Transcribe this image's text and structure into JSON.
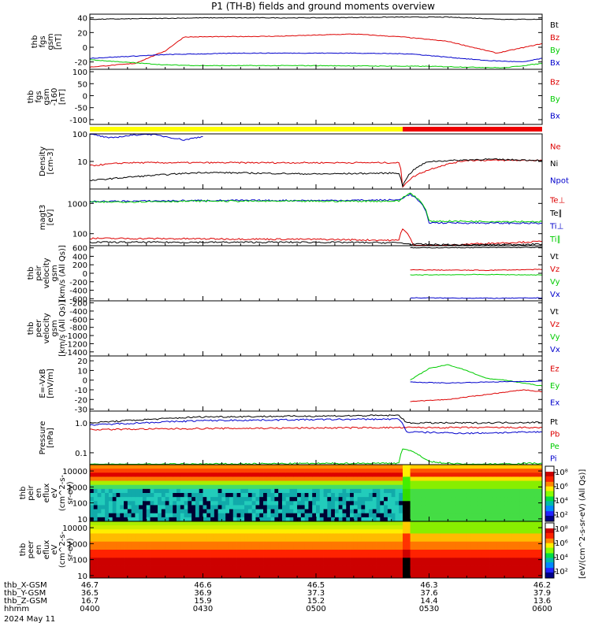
{
  "title": "P1 (TH-B) fields and ground moments overview",
  "colors": {
    "black": "#000000",
    "red": "#dd0000",
    "green": "#00cc00",
    "blue": "#0000cc",
    "bar_yellow": "#ffff00",
    "bar_red": "#ee0000"
  },
  "panels": [
    {
      "id": "fgs1",
      "ylabel": [
        "thb",
        "fgs",
        "gsm",
        "[nT]"
      ],
      "yticks": [
        "40",
        "20",
        "0",
        "-20"
      ],
      "legend": [
        {
          "text": "Bt",
          "color": "black"
        },
        {
          "text": "Bz",
          "color": "red"
        },
        {
          "text": "By",
          "color": "green"
        },
        {
          "text": "Bx",
          "color": "blue"
        }
      ]
    },
    {
      "id": "fgs2",
      "ylabel": [
        "thb",
        "fgs",
        "gsm",
        "-160",
        "[nT]"
      ],
      "yticks": [
        "100",
        "50",
        "0",
        "-50",
        "-100"
      ],
      "legend": [
        {
          "text": "Bz",
          "color": "red"
        },
        {
          "text": "By",
          "color": "green"
        },
        {
          "text": "Bx",
          "color": "blue"
        }
      ]
    },
    {
      "id": "density",
      "ylabel": [
        "Density",
        "[cm-3]"
      ],
      "yticks": [
        "100",
        "10"
      ],
      "legend": [
        {
          "text": "Ne",
          "color": "red"
        },
        {
          "text": "Ni",
          "color": "black"
        },
        {
          "text": "Npot",
          "color": "blue"
        }
      ]
    },
    {
      "id": "temp",
      "ylabel": [
        "magt3",
        "[eV]"
      ],
      "yticks": [
        "1000",
        "100"
      ],
      "legend": [
        {
          "text": "Te⊥",
          "color": "red"
        },
        {
          "text": "Te∥",
          "color": "black"
        },
        {
          "text": "Ti⊥",
          "color": "blue"
        },
        {
          "text": "Ti∥",
          "color": "green"
        }
      ]
    },
    {
      "id": "peir_vel",
      "ylabel": [
        "thb",
        "peir",
        "velocity",
        "gsm",
        "[km/s (All Qs)]"
      ],
      "yticks": [
        "600",
        "400",
        "200",
        "0",
        "-200",
        "-400",
        "-600"
      ],
      "legend": [
        {
          "text": "Vt",
          "color": "black"
        },
        {
          "text": "Vz",
          "color": "red"
        },
        {
          "text": "Vy",
          "color": "green"
        },
        {
          "text": "Vx",
          "color": "blue"
        }
      ]
    },
    {
      "id": "peer_vel",
      "ylabel": [
        "thb",
        "peer",
        "velocity",
        "gsm",
        "[km/s (All Qs)]"
      ],
      "yticks": [
        "-200",
        "-400",
        "-600",
        "-800",
        "-1000",
        "-1200",
        "-1400"
      ],
      "legend": [
        {
          "text": "Vt",
          "color": "black"
        },
        {
          "text": "Vz",
          "color": "red"
        },
        {
          "text": "Vy",
          "color": "green"
        },
        {
          "text": "Vx",
          "color": "blue"
        }
      ]
    },
    {
      "id": "efield",
      "ylabel": [
        "E=-VxB",
        "[mV/m]"
      ],
      "yticks": [
        "20",
        "10",
        "0",
        "-10",
        "-20",
        "-30"
      ],
      "legend": [
        {
          "text": "Ez",
          "color": "red"
        },
        {
          "text": "Ey",
          "color": "green"
        },
        {
          "text": "Ex",
          "color": "blue"
        }
      ]
    },
    {
      "id": "pressure",
      "ylabel": [
        "Pressure",
        "[nPa]"
      ],
      "yticks": [
        "1.0",
        "0.1"
      ],
      "legend": [
        {
          "text": "Pt",
          "color": "black"
        },
        {
          "text": "Pb",
          "color": "red"
        },
        {
          "text": "Pe",
          "color": "green"
        },
        {
          "text": "Pi",
          "color": "blue"
        }
      ]
    },
    {
      "id": "peir_spec",
      "ylabel": [
        "thb",
        "peir",
        "en",
        "eflux",
        "eV",
        "(cm^2-s-",
        "sr-eV)"
      ],
      "yticks": [
        "10000",
        "1000",
        "100",
        "10"
      ],
      "legend": []
    },
    {
      "id": "peer_spec",
      "ylabel": [
        "thb",
        "peer",
        "en",
        "eflux",
        "eV",
        "(cm^2-s-",
        "sr-eV)"
      ],
      "yticks": [
        "10000",
        "1000",
        "100",
        "10"
      ],
      "legend": []
    }
  ],
  "colorbar": {
    "label": "[eV/(cm^2-s-sr-eV) (All Qs)]",
    "top_ticks": [
      "10⁸",
      "10⁶",
      "10⁴",
      "10²"
    ],
    "bottom_ticks": [
      "10⁸",
      "10⁶",
      "10⁴",
      "10²"
    ]
  },
  "xaxis": {
    "rows": [
      {
        "label": "thb_X-GSM",
        "values": [
          "46.7",
          "46.6",
          "46.5",
          "46.3",
          "46.2"
        ]
      },
      {
        "label": "thb_Y-GSM",
        "values": [
          "36.5",
          "36.9",
          "37.3",
          "37.6",
          "37.9"
        ]
      },
      {
        "label": "thb_Z-GSM",
        "values": [
          "16.7",
          "15.9",
          "15.2",
          "14.4",
          "13.6"
        ]
      },
      {
        "label": "hhmm",
        "values": [
          "0400",
          "0430",
          "0500",
          "0530",
          "0600"
        ]
      }
    ],
    "date": "2024 May 11"
  },
  "chart_data": {
    "type": "line",
    "title": "P1 (TH-B) fields and ground moments overview",
    "x_range": [
      "04:00",
      "06:00"
    ],
    "x_ticks": [
      "0400",
      "0430",
      "0500",
      "0530",
      "0600"
    ],
    "transition_time": "05:23",
    "panels": [
      {
        "id": "fgs1",
        "ylabel": "thb fgs gsm [nT]",
        "ylim": [
          -30,
          45
        ],
        "series": [
          {
            "name": "Bt",
            "color": "black",
            "x": [
              "04:00",
              "04:30",
              "05:00",
              "05:20",
              "05:35",
              "05:50",
              "06:00"
            ],
            "y": [
              38,
              40,
              40,
              41,
              41,
              38,
              38
            ]
          },
          {
            "name": "Bz",
            "color": "red",
            "x": [
              "04:00",
              "04:12",
              "04:20",
              "04:25",
              "04:50",
              "05:10",
              "05:23",
              "05:35",
              "05:48",
              "06:00"
            ],
            "y": [
              -27,
              -22,
              -5,
              14,
              15,
              18,
              14,
              8,
              -8,
              5
            ]
          },
          {
            "name": "By",
            "color": "green",
            "x": [
              "04:00",
              "04:20",
              "04:30",
              "05:00",
              "05:30",
              "05:50",
              "06:00"
            ],
            "y": [
              -17,
              -24,
              -25,
              -25,
              -26,
              -28,
              -22
            ]
          },
          {
            "name": "Bx",
            "color": "blue",
            "x": [
              "04:00",
              "04:20",
              "04:40",
              "05:10",
              "05:25",
              "05:45",
              "05:55",
              "06:00"
            ],
            "y": [
              -15,
              -10,
              -8,
              -8,
              -9,
              -18,
              -20,
              -15
            ]
          }
        ]
      },
      {
        "id": "fgs2",
        "ylabel": "thb fgs gsm -160 [nT]",
        "ylim": [
          -120,
          110
        ],
        "series": []
      },
      {
        "id": "density",
        "ylabel": "Density [cm-3]",
        "scale": "log",
        "ylim": [
          1,
          100
        ],
        "series": [
          {
            "name": "Ne",
            "color": "red",
            "x": [
              "04:00",
              "04:10",
              "05:22",
              "05:23",
              "05:30",
              "05:40",
              "06:00"
            ],
            "y": [
              7,
              9,
              9,
              1.2,
              5,
              11,
              11
            ]
          },
          {
            "name": "Ni",
            "color": "black",
            "x": [
              "04:00",
              "04:30",
              "05:00",
              "05:22",
              "05:23",
              "05:30",
              "05:45",
              "06:00"
            ],
            "y": [
              2,
              4,
              3.5,
              3.8,
              1.2,
              10,
              12,
              11
            ]
          },
          {
            "name": "Npot",
            "color": "blue",
            "x": [
              "04:00",
              "04:05",
              "04:15",
              "04:25",
              "04:30"
            ],
            "y": [
              100,
              70,
              100,
              60,
              80
            ]
          }
        ]
      },
      {
        "id": "temp",
        "ylabel": "magt3 [eV]",
        "scale": "log",
        "ylim": [
          40,
          3000
        ],
        "series": [
          {
            "name": "Te⊥",
            "color": "red",
            "x": [
              "04:00",
              "05:00",
              "05:22",
              "05:23",
              "05:26",
              "05:40",
              "06:00"
            ],
            "y": [
              70,
              65,
              60,
              150,
              30,
              45,
              55
            ]
          },
          {
            "name": "Te∥",
            "color": "black",
            "x": [
              "04:00",
              "05:00",
              "05:22",
              "05:25",
              "05:40",
              "06:00"
            ],
            "y": [
              52,
              52,
              50,
              45,
              42,
              45
            ]
          },
          {
            "name": "Ti⊥",
            "color": "blue",
            "x": [
              "04:00",
              "04:30",
              "05:00",
              "05:22",
              "05:25",
              "05:30",
              "06:00"
            ],
            "y": [
              1150,
              1250,
              1250,
              1300,
              2000,
              230,
              220
            ]
          },
          {
            "name": "Ti∥",
            "color": "green",
            "x": [
              "04:00",
              "04:30",
              "05:00",
              "05:22",
              "05:25",
              "05:30",
              "06:00"
            ],
            "y": [
              1100,
              1200,
              1180,
              1200,
              2200,
              260,
              250
            ]
          }
        ]
      },
      {
        "id": "peir_vel",
        "ylabel": "thb peir velocity gsm [km/s (All Qs)]",
        "ylim": [
          -650,
          650
        ],
        "series": [
          {
            "name": "Vt",
            "color": "black",
            "x": [
              "05:25",
              "06:00"
            ],
            "y": [
              600,
              610
            ]
          },
          {
            "name": "Vz",
            "color": "red",
            "x": [
              "05:25",
              "05:45",
              "06:00"
            ],
            "y": [
              80,
              70,
              90
            ]
          },
          {
            "name": "Vy",
            "color": "green",
            "x": [
              "05:25",
              "05:45",
              "06:00"
            ],
            "y": [
              -40,
              -30,
              -40
            ]
          },
          {
            "name": "Vx",
            "color": "blue",
            "x": [
              "05:25",
              "05:50",
              "06:00"
            ],
            "y": [
              -580,
              -590,
              -580
            ]
          }
        ]
      },
      {
        "id": "peer_vel",
        "ylabel": "thb peer velocity gsm [km/s (All Qs)]",
        "ylim": [
          -1500,
          -150
        ],
        "series": []
      },
      {
        "id": "efield",
        "ylabel": "E=-VxB [mV/m]",
        "ylim": [
          -32,
          25
        ],
        "series": [
          {
            "name": "Ez",
            "color": "red",
            "x": [
              "05:25",
              "05:35",
              "05:45",
              "05:55",
              "06:00"
            ],
            "y": [
              -22,
              -20,
              -15,
              -10,
              -12
            ]
          },
          {
            "name": "Ey",
            "color": "green",
            "x": [
              "05:25",
              "05:30",
              "05:35",
              "05:40",
              "05:45",
              "05:50",
              "05:55",
              "06:00"
            ],
            "y": [
              0,
              12,
              16,
              10,
              2,
              0,
              -3,
              -6
            ]
          },
          {
            "name": "Ex",
            "color": "blue",
            "x": [
              "05:25",
              "05:35",
              "05:45",
              "06:00"
            ],
            "y": [
              -2,
              -3,
              -2,
              -1
            ]
          }
        ]
      },
      {
        "id": "pressure",
        "ylabel": "Pressure [nPa]",
        "scale": "log",
        "ylim": [
          0.04,
          2.5
        ],
        "series": [
          {
            "name": "Pt",
            "color": "black",
            "x": [
              "04:00",
              "04:30",
              "05:00",
              "05:22",
              "05:24",
              "05:40",
              "06:00"
            ],
            "y": [
              1.0,
              1.6,
              1.7,
              1.8,
              1.0,
              1.0,
              1.05
            ]
          },
          {
            "name": "Pb",
            "color": "red",
            "x": [
              "04:00",
              "04:30",
              "05:00",
              "05:23",
              "05:40",
              "06:00"
            ],
            "y": [
              0.6,
              0.65,
              0.68,
              0.7,
              0.7,
              0.7
            ]
          },
          {
            "name": "Pe",
            "color": "green",
            "x": [
              "04:00",
              "05:22",
              "05:23",
              "05:30",
              "05:40",
              "06:00"
            ],
            "y": [
              0.04,
              0.045,
              0.14,
              0.05,
              0.04,
              0.045
            ]
          },
          {
            "name": "Pi",
            "color": "blue",
            "x": [
              "04:00",
              "04:30",
              "05:00",
              "05:22",
              "05:24",
              "05:40",
              "06:00"
            ],
            "y": [
              0.85,
              1.2,
              1.3,
              1.35,
              0.5,
              0.45,
              0.5
            ]
          }
        ]
      },
      {
        "id": "peir_spec",
        "type": "heatmap",
        "ylabel": "thb peir en eflux eV (cm^2-s-sr-eV)",
        "scale": "log",
        "ylim": [
          7,
          25000
        ]
      },
      {
        "id": "peer_spec",
        "type": "heatmap",
        "ylabel": "thb peer en eflux eV (cm^2-s-sr-eV)",
        "scale": "log",
        "ylim": [
          7,
          25000
        ]
      }
    ]
  }
}
